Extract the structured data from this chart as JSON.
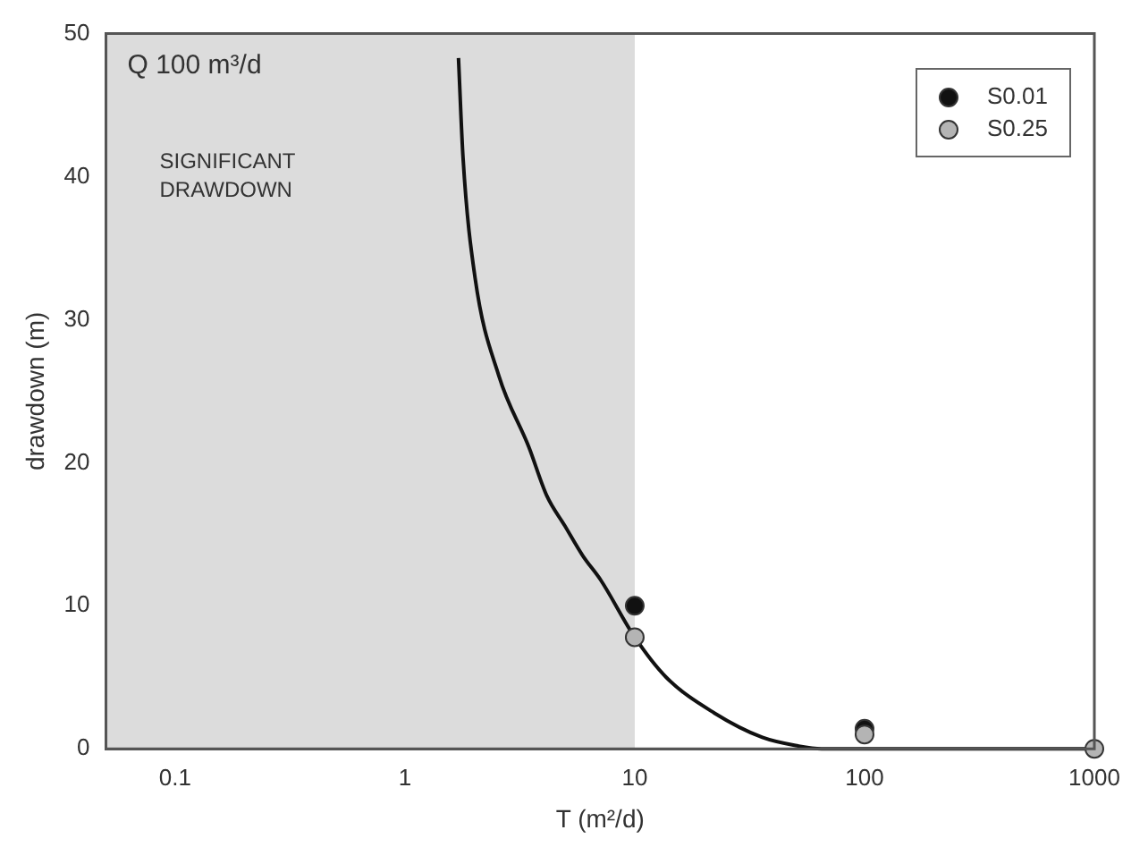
{
  "chart_data": {
    "type": "scatter",
    "xlabel": "T (m²/d)",
    "ylabel": "drawdown (m)",
    "annotations": [
      "Q 100 m³/d",
      "SIGNIFICANT DRAWDOWN"
    ],
    "log": "x",
    "xlim": [
      0.05,
      1000
    ],
    "xticks": [
      0.1,
      1,
      10,
      100,
      1000
    ],
    "ylim": [
      0,
      50
    ],
    "yticks": [
      0,
      10,
      20,
      30,
      40,
      50
    ],
    "grid": false,
    "legend": "top right",
    "marker": "circle",
    "bands": [
      {
        "axis": "x",
        "from": 0.05,
        "to": 10,
        "color": "#dcdcdc"
      }
    ],
    "series": [
      {
        "type": "line",
        "color": "#111111",
        "marker": "none",
        "x": [
          1.71,
          1.79,
          2.02,
          2.56,
          3.46,
          4.14,
          4.96,
          5.94,
          7.11,
          10,
          13.7,
          22.2,
          35.9,
          51.4,
          65,
          100,
          1000
        ],
        "values": [
          48.3,
          41.3,
          32.9,
          26.1,
          21.1,
          17.7,
          15.6,
          13.5,
          11.8,
          7.8,
          5.0,
          2.5,
          0.8,
          0.2,
          0,
          0,
          0
        ]
      },
      {
        "name": "S0.01",
        "color": "#111111",
        "x": [
          10,
          100
        ],
        "values": [
          10,
          1.4
        ]
      },
      {
        "name": "S0.25",
        "color": "#b4b4b4",
        "x": [
          10,
          100,
          1000
        ],
        "values": [
          7.8,
          1.0,
          0
        ]
      }
    ]
  }
}
